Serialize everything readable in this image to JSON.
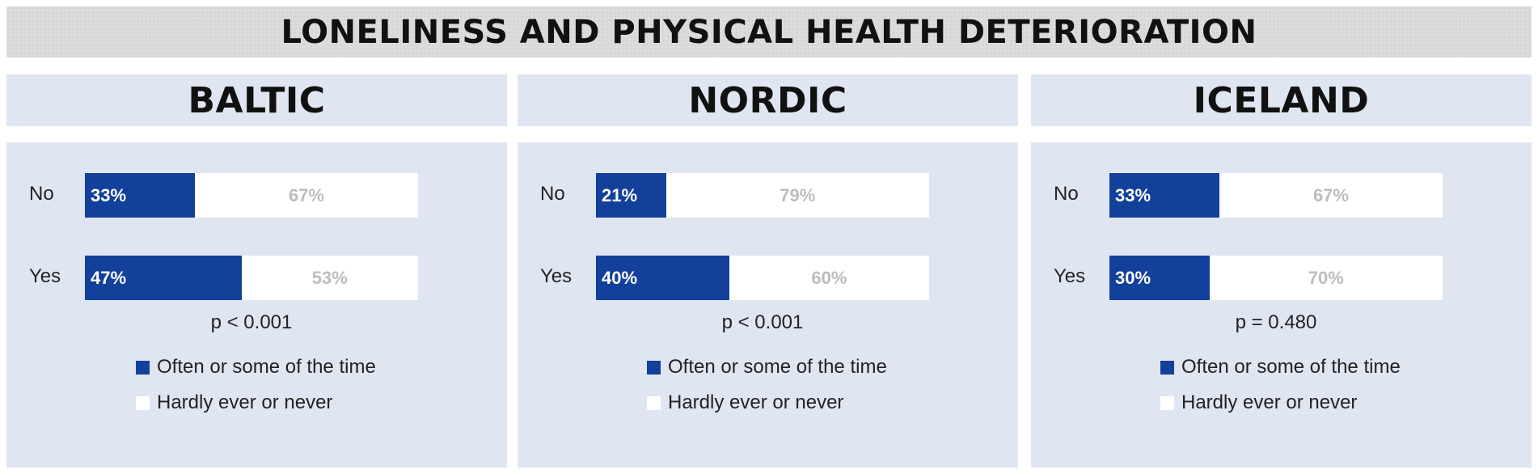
{
  "title": "LONELINESS AND PHYSICAL HEALTH DETERIORATION",
  "colors": {
    "often": "#12409a",
    "hardly": "#ffffff",
    "panel_bg": "#dfe6f2",
    "rare_text": "#bdbdbd"
  },
  "legend": {
    "often": "Often or some of the time",
    "hardly": "Hardly ever or never"
  },
  "chart_data": [
    {
      "type": "bar",
      "stacked": true,
      "orientation": "horizontal",
      "title": "BALTIC",
      "categories": [
        "No",
        "Yes"
      ],
      "series": [
        {
          "name": "Often or some of the time",
          "values": [
            33,
            47
          ],
          "labels": [
            "33%",
            "47%"
          ]
        },
        {
          "name": "Hardly ever or never",
          "values": [
            67,
            53
          ],
          "labels": [
            "67%",
            "53%"
          ]
        }
      ],
      "pvalue": "p < 0.001"
    },
    {
      "type": "bar",
      "stacked": true,
      "orientation": "horizontal",
      "title": "NORDIC",
      "categories": [
        "No",
        "Yes"
      ],
      "series": [
        {
          "name": "Often or some of the time",
          "values": [
            21,
            40
          ],
          "labels": [
            "21%",
            "40%"
          ]
        },
        {
          "name": "Hardly ever or never",
          "values": [
            79,
            60
          ],
          "labels": [
            "79%",
            "60%"
          ]
        }
      ],
      "pvalue": "p < 0.001"
    },
    {
      "type": "bar",
      "stacked": true,
      "orientation": "horizontal",
      "title": "ICELAND",
      "categories": [
        "No",
        "Yes"
      ],
      "series": [
        {
          "name": "Often or some of the time",
          "values": [
            33,
            30
          ],
          "labels": [
            "33%",
            "30%"
          ]
        },
        {
          "name": "Hardly ever or never",
          "values": [
            67,
            70
          ],
          "labels": [
            "67%",
            "70%"
          ]
        }
      ],
      "pvalue": "p = 0.480"
    }
  ]
}
